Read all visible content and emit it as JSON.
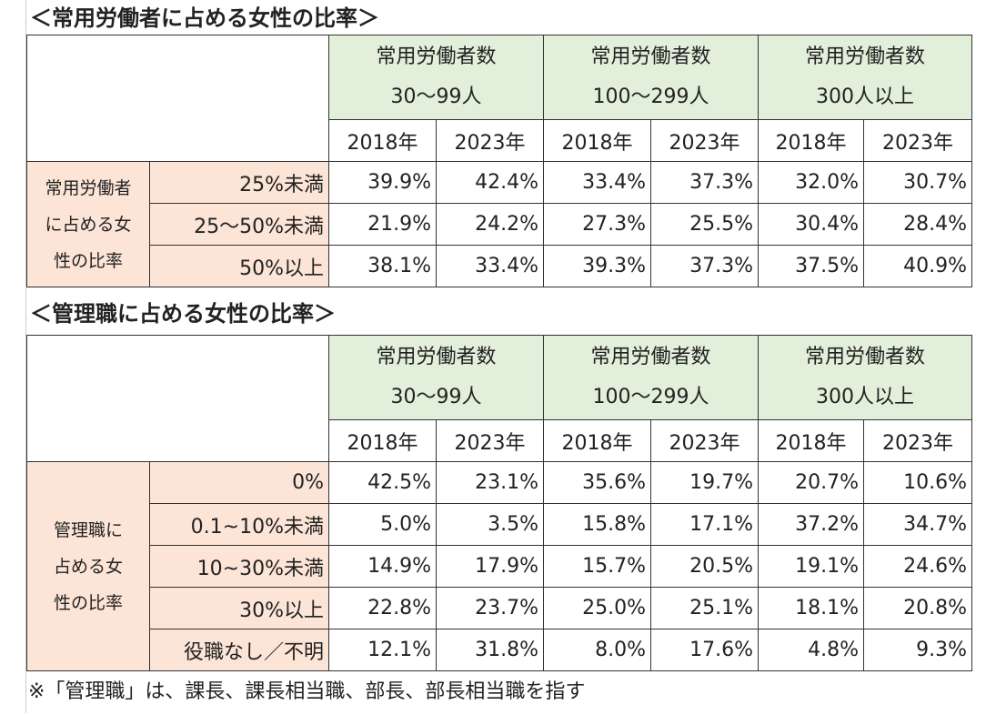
{
  "tables": [
    {
      "title": "＜常用労働者に占める女性の比率＞",
      "groups": [
        [
          "常用労働者数",
          "30〜99人"
        ],
        [
          "常用労働者数",
          "100〜299人"
        ],
        [
          "常用労働者数",
          "300人以上"
        ]
      ],
      "years": [
        "2018年",
        "2023年",
        "2018年",
        "2023年",
        "2018年",
        "2023年"
      ],
      "row_header": [
        "常用労働者",
        "に占める女",
        "性の比率"
      ],
      "rows": [
        {
          "label": "25%未満",
          "cells": [
            "39.9%",
            "42.4%",
            "33.4%",
            "37.3%",
            "32.0%",
            "30.7%"
          ]
        },
        {
          "label": "25〜50%未満",
          "cells": [
            "21.9%",
            "24.2%",
            "27.3%",
            "25.5%",
            "30.4%",
            "28.4%"
          ]
        },
        {
          "label": "50%以上",
          "cells": [
            "38.1%",
            "33.4%",
            "39.3%",
            "37.3%",
            "37.5%",
            "40.9%"
          ]
        }
      ]
    },
    {
      "title": "＜管理職に占める女性の比率＞",
      "groups": [
        [
          "常用労働者数",
          "30〜99人"
        ],
        [
          "常用労働者数",
          "100〜299人"
        ],
        [
          "常用労働者数",
          "300人以上"
        ]
      ],
      "years": [
        "2018年",
        "2023年",
        "2018年",
        "2023年",
        "2018年",
        "2023年"
      ],
      "row_header": [
        "管理職に",
        "占める女",
        "性の比率"
      ],
      "rows": [
        {
          "label": "0%",
          "cells": [
            "42.5%",
            "23.1%",
            "35.6%",
            "19.7%",
            "20.7%",
            "10.6%"
          ]
        },
        {
          "label": "0.1~10%未満",
          "cells": [
            "5.0%",
            "3.5%",
            "15.8%",
            "17.1%",
            "37.2%",
            "34.7%"
          ]
        },
        {
          "label": "10~30%未満",
          "cells": [
            "14.9%",
            "17.9%",
            "15.7%",
            "20.5%",
            "19.1%",
            "24.6%"
          ]
        },
        {
          "label": "30%以上",
          "cells": [
            "22.8%",
            "23.7%",
            "25.0%",
            "25.1%",
            "18.1%",
            "20.8%"
          ]
        },
        {
          "label": "役職なし／不明",
          "cells": [
            "12.1%",
            "31.8%",
            "8.0%",
            "17.6%",
            "4.8%",
            "9.3%"
          ]
        }
      ]
    }
  ],
  "note": "※「管理職」は、課長、課長相当職、部長、部長相当職を指す"
}
